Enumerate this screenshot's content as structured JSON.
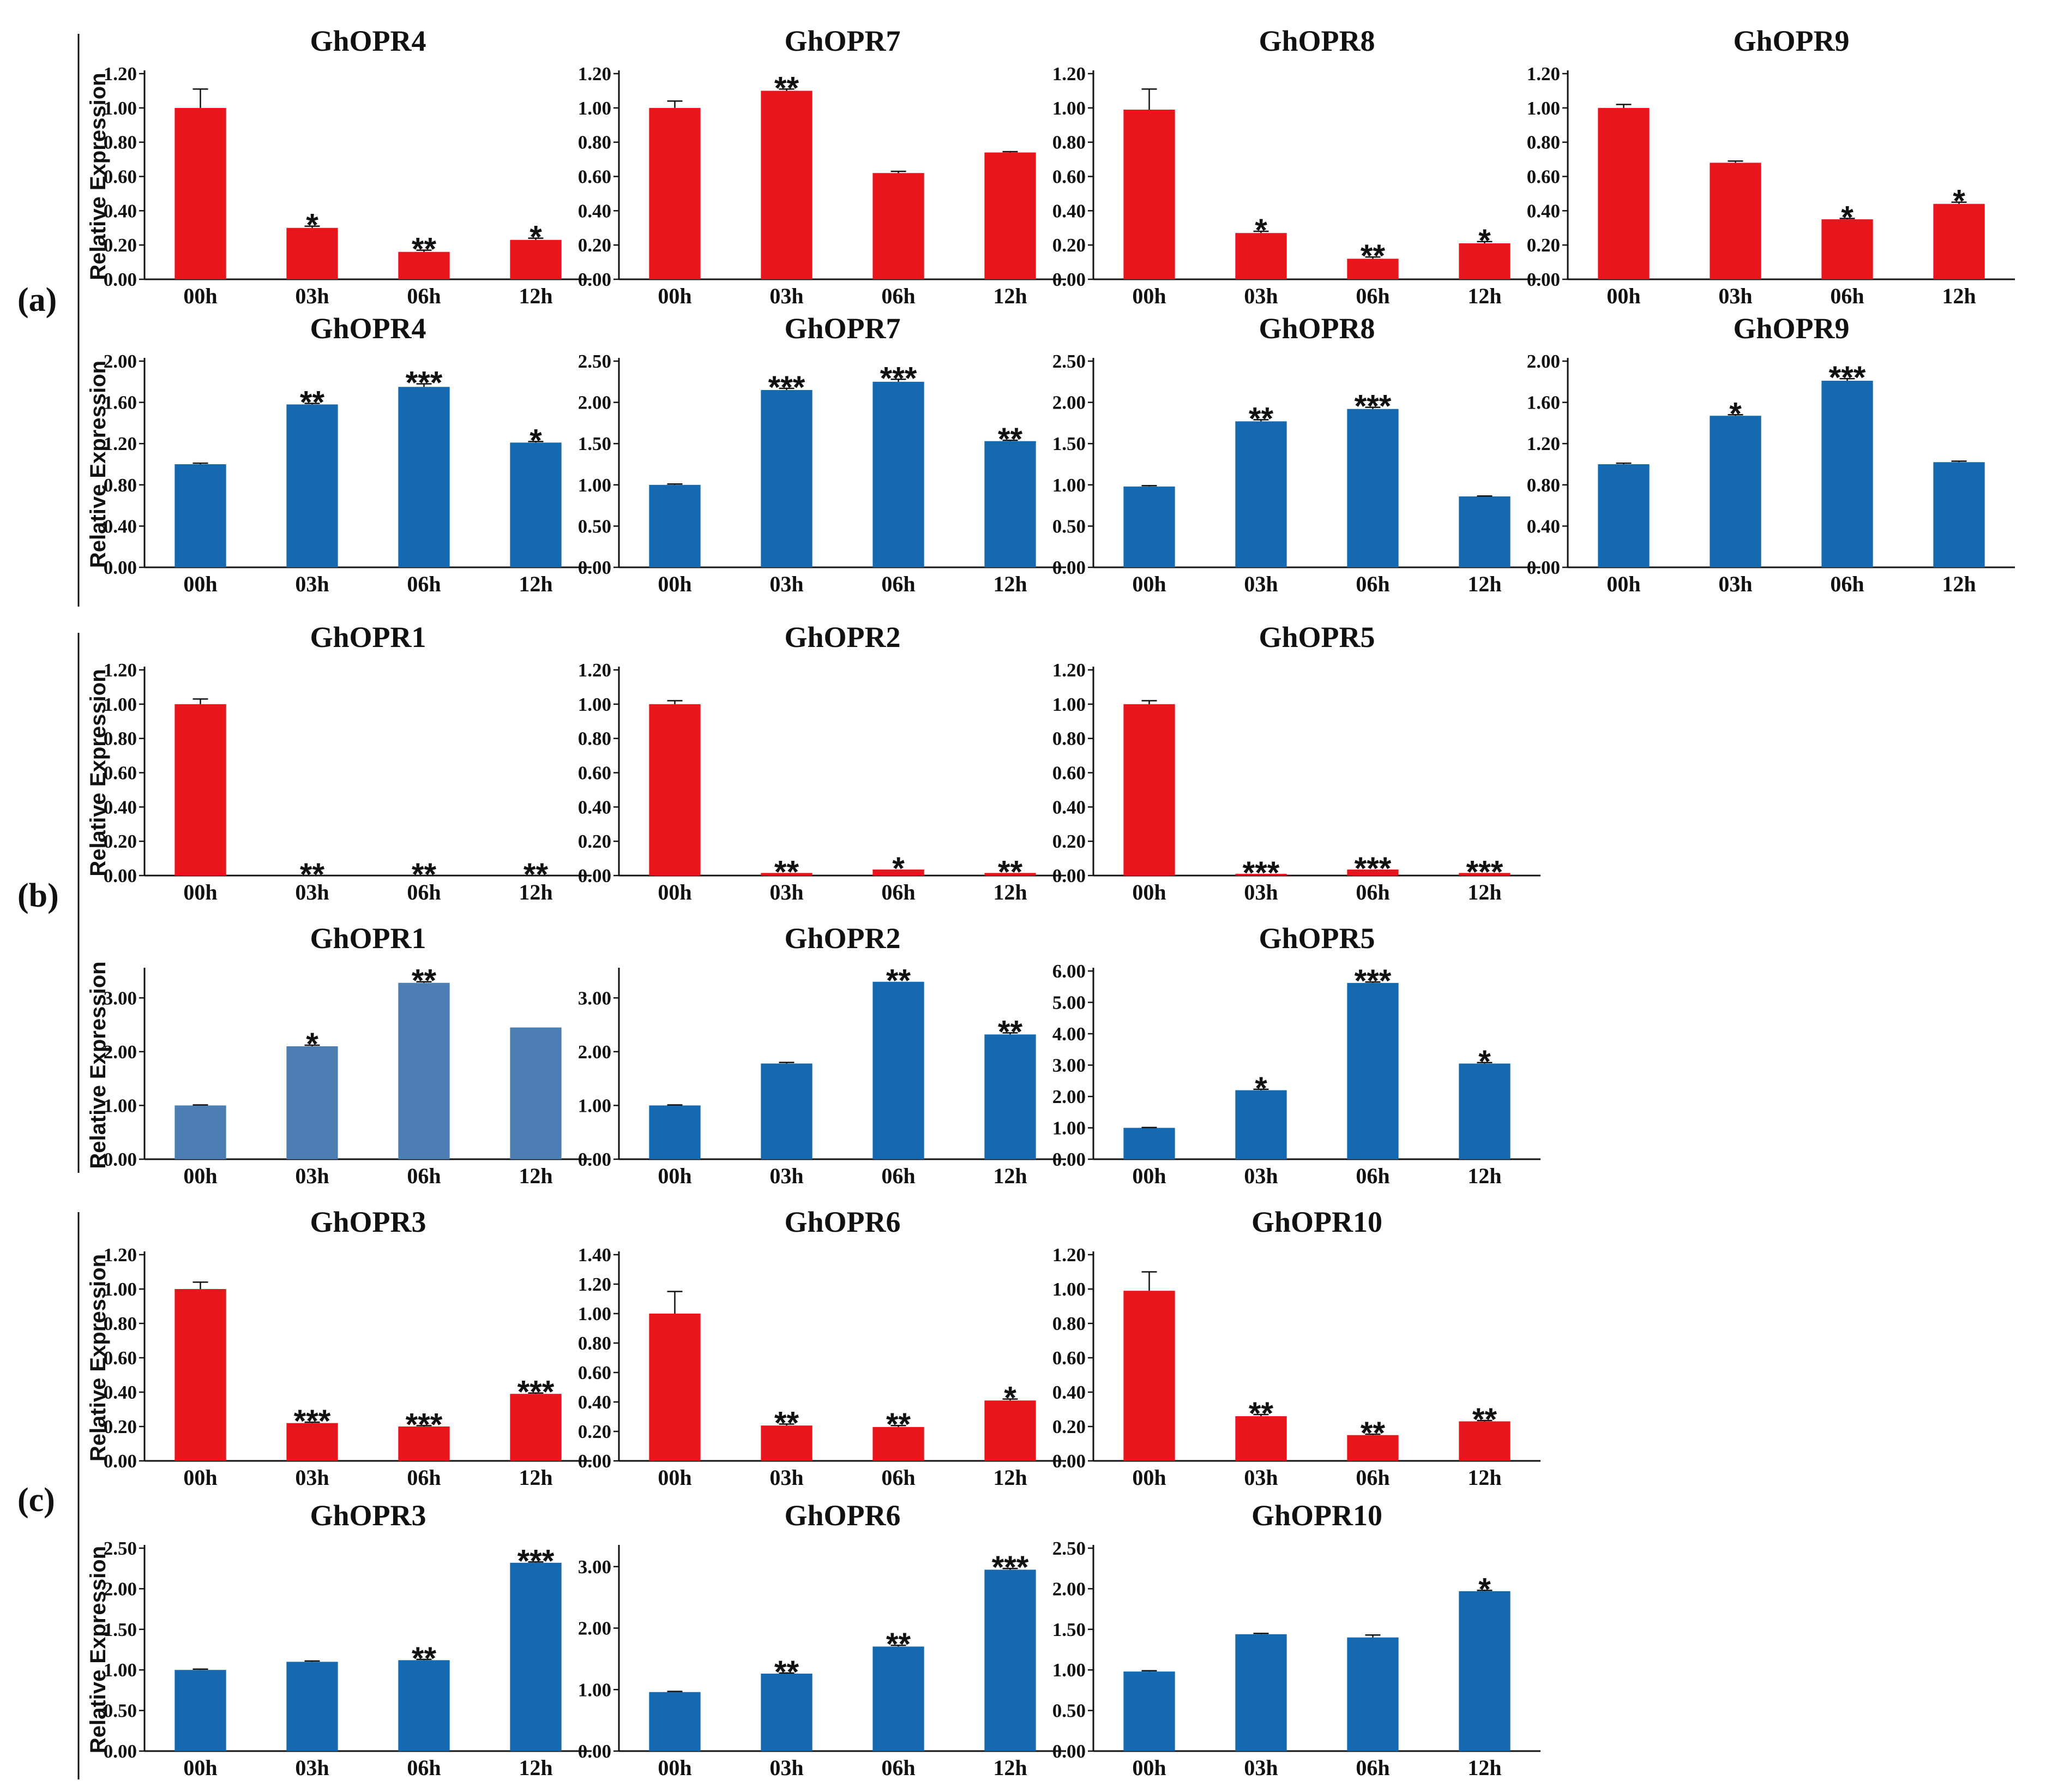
{
  "colors": {
    "red": "#e8161c",
    "blue": "#1569b1",
    "lightblue": "#4c7db3"
  },
  "panel_labels": [
    "(a)",
    "(b)",
    "(c)"
  ],
  "common": {
    "categories": [
      "00h",
      "03h",
      "06h",
      "12h"
    ],
    "ylabel": "Relative Expression"
  },
  "chart_data": [
    {
      "type": "bar",
      "panel": "(a)",
      "title": "GhOPR4",
      "color": "red",
      "ylim": [
        0,
        1.2
      ],
      "step": 0.2,
      "decimals": 2,
      "values": [
        1.0,
        0.3,
        0.16,
        0.23
      ],
      "errors": [
        0.11,
        0.01,
        0.01,
        0.01
      ],
      "sig": [
        "",
        "*",
        "**",
        "*"
      ]
    },
    {
      "type": "bar",
      "panel": "(a)",
      "title": "GhOPR7",
      "color": "red",
      "ylim": [
        0,
        1.2
      ],
      "step": 0.2,
      "decimals": 2,
      "values": [
        1.0,
        1.1,
        0.62,
        0.74
      ],
      "errors": [
        0.04,
        0.01,
        0.01,
        0.005
      ],
      "sig": [
        "",
        "**",
        "",
        ""
      ]
    },
    {
      "type": "bar",
      "panel": "(a)",
      "title": "GhOPR8",
      "color": "red",
      "ylim": [
        0,
        1.2
      ],
      "step": 0.2,
      "decimals": 2,
      "values": [
        0.99,
        0.27,
        0.12,
        0.21
      ],
      "errors": [
        0.12,
        0.01,
        0.01,
        0.01
      ],
      "sig": [
        "",
        "*",
        "**",
        "*"
      ]
    },
    {
      "type": "bar",
      "panel": "(a)",
      "title": "GhOPR9",
      "color": "red",
      "ylim": [
        0,
        1.2
      ],
      "step": 0.2,
      "decimals": 2,
      "values": [
        1.0,
        0.68,
        0.35,
        0.44
      ],
      "errors": [
        0.02,
        0.01,
        0.005,
        0.01
      ],
      "sig": [
        "",
        "",
        "*",
        "*"
      ]
    },
    {
      "type": "bar",
      "panel": "(a)",
      "title": "GhOPR4",
      "color": "blue",
      "ylim": [
        0,
        2.0
      ],
      "step": 0.4,
      "decimals": 2,
      "values": [
        1.0,
        1.58,
        1.75,
        1.21
      ],
      "errors": [
        0.01,
        0.01,
        0.03,
        0.01
      ],
      "sig": [
        "",
        "**",
        "***",
        "*"
      ]
    },
    {
      "type": "bar",
      "panel": "(a)",
      "title": "GhOPR7",
      "color": "blue",
      "ylim": [
        0,
        2.5
      ],
      "step": 0.5,
      "decimals": 2,
      "values": [
        1.0,
        2.15,
        2.25,
        1.53
      ],
      "errors": [
        0.01,
        0.02,
        0.03,
        0.01
      ],
      "sig": [
        "",
        "***",
        "***",
        "**"
      ]
    },
    {
      "type": "bar",
      "panel": "(a)",
      "title": "GhOPR8",
      "color": "blue",
      "ylim": [
        0,
        2.5
      ],
      "step": 0.5,
      "decimals": 2,
      "values": [
        0.98,
        1.77,
        1.92,
        0.86
      ],
      "errors": [
        0.01,
        0.02,
        0.02,
        0.005
      ],
      "sig": [
        "",
        "**",
        "***",
        ""
      ]
    },
    {
      "type": "bar",
      "panel": "(a)",
      "title": "GhOPR9",
      "color": "blue",
      "ylim": [
        0,
        2.0
      ],
      "step": 0.4,
      "decimals": 2,
      "values": [
        1.0,
        1.47,
        1.81,
        1.02
      ],
      "errors": [
        0.01,
        0.01,
        0.02,
        0.01
      ],
      "sig": [
        "",
        "*",
        "***",
        ""
      ]
    },
    {
      "type": "bar",
      "panel": "(b)",
      "title": "GhOPR1",
      "color": "red",
      "ylim": [
        0,
        1.2
      ],
      "step": 0.2,
      "decimals": 2,
      "values": [
        1.0,
        0.0,
        0.0,
        0.0
      ],
      "errors": [
        0.03,
        0,
        0,
        0
      ],
      "sig": [
        "",
        "**",
        "**",
        "**"
      ]
    },
    {
      "type": "bar",
      "panel": "(b)",
      "title": "GhOPR2",
      "color": "red",
      "ylim": [
        0,
        1.2
      ],
      "step": 0.2,
      "decimals": 2,
      "values": [
        1.0,
        0.015,
        0.035,
        0.015
      ],
      "errors": [
        0.02,
        0,
        0,
        0
      ],
      "sig": [
        "",
        "**",
        "*",
        "**"
      ]
    },
    {
      "type": "bar",
      "panel": "(b)",
      "title": "GhOPR5",
      "color": "red",
      "ylim": [
        0,
        1.2
      ],
      "step": 0.2,
      "decimals": 2,
      "values": [
        1.0,
        0.01,
        0.035,
        0.015
      ],
      "errors": [
        0.02,
        0,
        0,
        0
      ],
      "sig": [
        "",
        "***",
        "***",
        "***"
      ]
    },
    {
      "type": "bar",
      "panel": "(b)",
      "title": "GhOPR1",
      "color": "lightblue",
      "ylim": [
        0,
        3.5
      ],
      "step": 1.0,
      "decimals": 2,
      "tickmax": 3.0,
      "values": [
        1.0,
        2.1,
        3.28,
        2.45
      ],
      "errors": [
        0.01,
        0.02,
        0.02,
        0.0
      ],
      "sig": [
        "",
        "*",
        "**",
        ""
      ]
    },
    {
      "type": "bar",
      "panel": "(b)",
      "title": "GhOPR2",
      "color": "blue",
      "ylim": [
        0,
        3.5
      ],
      "step": 1.0,
      "decimals": 2,
      "tickmax": 3.0,
      "values": [
        1.0,
        1.78,
        3.3,
        2.32
      ],
      "errors": [
        0.01,
        0.02,
        0.0,
        0.03
      ],
      "sig": [
        "",
        "",
        "**",
        "**"
      ]
    },
    {
      "type": "bar",
      "panel": "(b)",
      "title": "GhOPR5",
      "color": "blue",
      "ylim": [
        0,
        6.0
      ],
      "step": 1.0,
      "decimals": 2,
      "values": [
        1.0,
        2.2,
        5.62,
        3.05
      ],
      "errors": [
        0.01,
        0.03,
        0.03,
        0.03
      ],
      "sig": [
        "",
        "*",
        "***",
        "*"
      ]
    },
    {
      "type": "bar",
      "panel": "(c)",
      "title": "GhOPR3",
      "color": "red",
      "ylim": [
        0,
        1.2
      ],
      "step": 0.2,
      "decimals": 2,
      "values": [
        1.0,
        0.22,
        0.2,
        0.39
      ],
      "errors": [
        0.04,
        0.005,
        0.005,
        0.005
      ],
      "sig": [
        "",
        "***",
        "***",
        "***"
      ]
    },
    {
      "type": "bar",
      "panel": "(c)",
      "title": "GhOPR6",
      "color": "red",
      "ylim": [
        0,
        1.4
      ],
      "step": 0.2,
      "decimals": 2,
      "values": [
        1.0,
        0.24,
        0.23,
        0.41
      ],
      "errors": [
        0.15,
        0.01,
        0.01,
        0.01
      ],
      "sig": [
        "",
        "**",
        "**",
        "*"
      ]
    },
    {
      "type": "bar",
      "panel": "(c)",
      "title": "GhOPR10",
      "color": "red",
      "ylim": [
        0,
        1.2
      ],
      "step": 0.2,
      "decimals": 2,
      "values": [
        0.99,
        0.26,
        0.15,
        0.23
      ],
      "errors": [
        0.11,
        0.01,
        0.005,
        0.005
      ],
      "sig": [
        "",
        "**",
        "**",
        "**"
      ]
    },
    {
      "type": "bar",
      "panel": "(c)",
      "title": "GhOPR3",
      "color": "blue",
      "ylim": [
        0,
        2.5
      ],
      "step": 0.5,
      "decimals": 2,
      "values": [
        1.0,
        1.1,
        1.12,
        2.32
      ],
      "errors": [
        0.01,
        0.01,
        0.01,
        0.01
      ],
      "sig": [
        "",
        "",
        "**",
        "***"
      ]
    },
    {
      "type": "bar",
      "panel": "(c)",
      "title": "GhOPR6",
      "color": "blue",
      "ylim": [
        0,
        3.3
      ],
      "step": 1.0,
      "decimals": 2,
      "tickmax": 3.0,
      "values": [
        0.96,
        1.26,
        1.7,
        2.95
      ],
      "errors": [
        0.01,
        0.01,
        0.02,
        0.02
      ],
      "sig": [
        "",
        "**",
        "**",
        "***"
      ]
    },
    {
      "type": "bar",
      "panel": "(c)",
      "title": "GhOPR10",
      "color": "blue",
      "ylim": [
        0,
        2.5
      ],
      "step": 0.5,
      "decimals": 2,
      "values": [
        0.98,
        1.44,
        1.4,
        1.97
      ],
      "errors": [
        0.01,
        0.01,
        0.03,
        0.01
      ],
      "sig": [
        "",
        "",
        "",
        "*"
      ]
    }
  ]
}
